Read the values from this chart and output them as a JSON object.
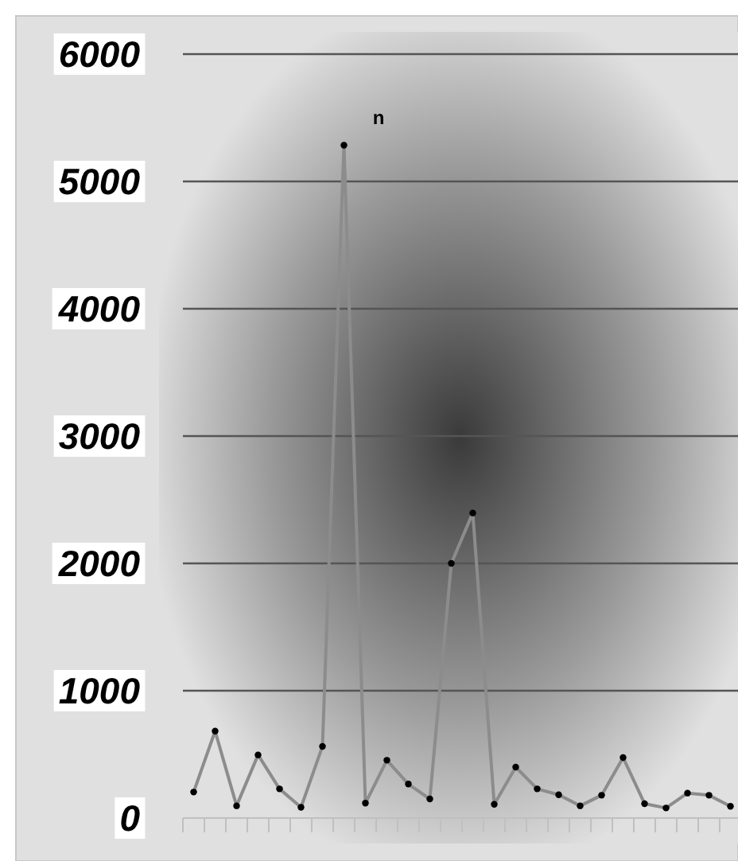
{
  "chart_data": {
    "type": "line",
    "categories": [
      null,
      null,
      null,
      null,
      null,
      null,
      null,
      null,
      null,
      null,
      null,
      null,
      null,
      null,
      null,
      null,
      null,
      null,
      null,
      null,
      null,
      null,
      null,
      null,
      null,
      null
    ],
    "series": [
      {
        "color": "#8c8c8c",
        "values": [
          204,
          683,
          96,
          496,
          229,
          84,
          563,
          5284,
          117,
          454,
          267,
          150,
          2000,
          2396,
          108,
          400,
          229,
          183,
          96,
          179,
          475,
          113,
          79,
          196,
          179,
          92
        ]
      }
    ],
    "ylim": [
      0,
      6000
    ],
    "yticks": [
      0,
      1000,
      2000,
      3000,
      4000,
      5000,
      6000
    ],
    "grid": "y",
    "marker": "circle",
    "line_style": "solid",
    "tick_labels": "y",
    "annotations": [
      "n"
    ]
  }
}
